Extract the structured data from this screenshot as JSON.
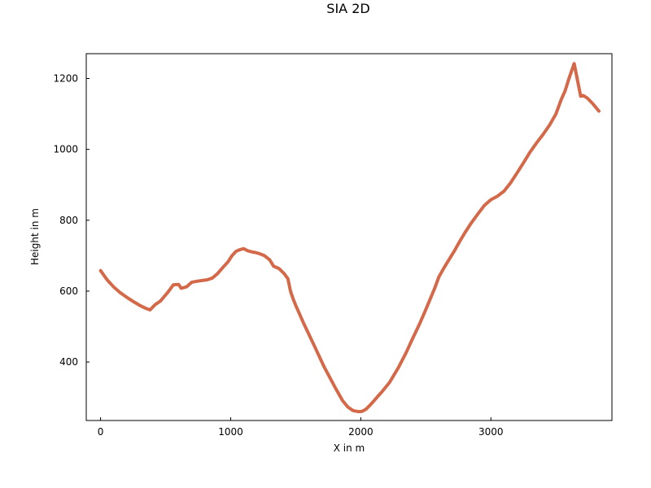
{
  "chart_data": {
    "type": "line",
    "title": "SIA 2D",
    "xlabel": "X in m",
    "ylabel": "Height in m",
    "xlim": [
      -110,
      3930
    ],
    "ylim": [
      235,
      1270
    ],
    "xticks": [
      0,
      1000,
      2000,
      3000
    ],
    "yticks": [
      400,
      600,
      800,
      1000,
      1200
    ],
    "grid": false,
    "line_color": "#d4694a",
    "series": [
      {
        "name": "",
        "x": [
          0,
          50,
          100,
          150,
          200,
          250,
          300,
          350,
          380,
          420,
          460,
          490,
          520,
          560,
          600,
          620,
          660,
          700,
          740,
          780,
          820,
          860,
          900,
          940,
          980,
          1010,
          1040,
          1070,
          1100,
          1130,
          1160,
          1190,
          1220,
          1260,
          1300,
          1330,
          1370,
          1410,
          1440,
          1460,
          1480,
          1500,
          1560,
          1640,
          1720,
          1800,
          1860,
          1900,
          1940,
          1980,
          2010,
          2040,
          2070,
          2100,
          2130,
          2160,
          2220,
          2290,
          2350,
          2400,
          2450,
          2500,
          2570,
          2600,
          2640,
          2680,
          2720,
          2760,
          2800,
          2850,
          2900,
          2950,
          3000,
          3050,
          3100,
          3150,
          3200,
          3250,
          3300,
          3350,
          3400,
          3450,
          3500,
          3540,
          3570,
          3600,
          3640,
          3660,
          3690,
          3710,
          3740,
          3780,
          3830
        ],
        "y": [
          658,
          632,
          612,
          596,
          583,
          571,
          560,
          551,
          547,
          562,
          572,
          585,
          598,
          618,
          619,
          608,
          612,
          625,
          628,
          630,
          632,
          637,
          650,
          667,
          683,
          700,
          712,
          717,
          720,
          714,
          711,
          709,
          706,
          700,
          688,
          670,
          664,
          650,
          635,
          600,
          578,
          560,
          510,
          448,
          385,
          330,
          291,
          273,
          263,
          260,
          261,
          267,
          278,
          290,
          303,
          315,
          342,
          385,
          428,
          468,
          506,
          548,
          610,
          640,
          666,
          690,
          714,
          740,
          765,
          793,
          818,
          842,
          858,
          868,
          882,
          905,
          933,
          962,
          992,
          1018,
          1042,
          1068,
          1100,
          1140,
          1165,
          1200,
          1242,
          1205,
          1150,
          1152,
          1145,
          1130,
          1108
        ]
      }
    ]
  }
}
